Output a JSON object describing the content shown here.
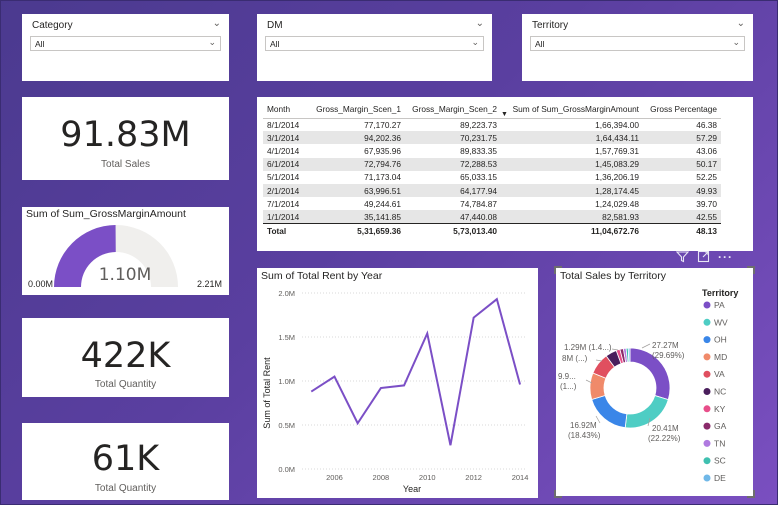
{
  "slicers": [
    {
      "title": "Category",
      "value": "All"
    },
    {
      "title": "DM",
      "value": "All"
    },
    {
      "title": "Territory",
      "value": "All"
    }
  ],
  "kpis": {
    "total_sales": {
      "value": "91.83M",
      "label": "Total Sales"
    },
    "total_quantity": {
      "value": "422K",
      "label": "Total Quantity"
    },
    "total_quantity_2": {
      "value": "61K",
      "label": "Total Quantity"
    }
  },
  "gauge": {
    "title": "Sum of Sum_GrossMarginAmount",
    "value_label": "1.10M",
    "min_label": "0.00M",
    "max_label": "2.21M",
    "value": 1.1,
    "min": 0,
    "max": 2.21,
    "fill_color": "#7b4fc6",
    "track_color": "#f0efed"
  },
  "table": {
    "columns": [
      "Month",
      "Gross_Margin_Scen_1",
      "Gross_Margin_Scen_2",
      "Sum of Sum_GrossMarginAmount",
      "Gross Percentage"
    ],
    "rows": [
      [
        "8/1/2014",
        "77,170.27",
        "89,223.73",
        "1,66,394.00",
        "46.38"
      ],
      [
        "3/1/2014",
        "94,202.36",
        "70,231.75",
        "1,64,434.11",
        "57.29"
      ],
      [
        "4/1/2014",
        "67,935.96",
        "89,833.35",
        "1,57,769.31",
        "43.06"
      ],
      [
        "6/1/2014",
        "72,794.76",
        "72,288.53",
        "1,45,083.29",
        "50.17"
      ],
      [
        "5/1/2014",
        "71,173.04",
        "65,033.15",
        "1,36,206.19",
        "52.25"
      ],
      [
        "2/1/2014",
        "63,996.51",
        "64,177.94",
        "1,28,174.45",
        "49.93"
      ],
      [
        "7/1/2014",
        "49,244.61",
        "74,784.87",
        "1,24,029.48",
        "39.70"
      ],
      [
        "1/1/2014",
        "35,141.85",
        "47,440.08",
        "82,581.93",
        "42.55"
      ]
    ],
    "total": [
      "Total",
      "5,31,659.36",
      "5,73,013.40",
      "11,04,672.76",
      "48.13"
    ]
  },
  "chart_data": [
    {
      "type": "line",
      "title": "Sum of Total Rent by Year",
      "xlabel": "Year",
      "ylabel": "Sum of Total Rent",
      "x": [
        2005,
        2006,
        2007,
        2008,
        2009,
        2010,
        2011,
        2012,
        2013,
        2014
      ],
      "y": [
        0.88,
        1.05,
        0.52,
        0.92,
        0.95,
        1.54,
        0.27,
        1.72,
        1.93,
        0.96
      ],
      "xticks": [
        "2006",
        "2008",
        "2010",
        "2012",
        "2014"
      ],
      "yticks": [
        "0.0M",
        "0.5M",
        "1.0M",
        "1.5M",
        "2.0M"
      ],
      "ylim": [
        0,
        2.0
      ],
      "xlim": [
        2004.6,
        2014.3
      ],
      "color": "#7b4fc6",
      "grid": true
    },
    {
      "type": "pie",
      "title": "Total Sales by Territory",
      "legend_title": "Territory",
      "legend_position": "right",
      "categories": [
        "PA",
        "WV",
        "OH",
        "MD",
        "VA",
        "NC",
        "KY",
        "GA",
        "TN",
        "SC",
        "DE"
      ],
      "values": [
        27.27,
        20.41,
        16.92,
        9.9,
        8.0,
        4.2,
        1.4,
        1.29,
        1.0,
        0.8,
        0.64
      ],
      "colors": [
        "#7b4fc6",
        "#4ecdc4",
        "#3a86e8",
        "#f08a6a",
        "#e04f5f",
        "#4a1e5c",
        "#e84e8a",
        "#8a2a6a",
        "#b07ae0",
        "#3fc0b0",
        "#70b8e8"
      ],
      "labels": [
        {
          "value": "27.27M",
          "pct": "(29.69%)"
        },
        {
          "value": "20.41M",
          "pct": "(22.22%)"
        },
        {
          "value": "16.92M",
          "pct": "(18.43%)"
        },
        {
          "value": "9.9...",
          "pct": "(1...)"
        },
        {
          "value": "8M (...)",
          "pct": ""
        },
        {
          "value": "1.29M (1.4...)",
          "pct": ""
        }
      ]
    }
  ],
  "icons": {
    "filter": "filter-icon",
    "focus": "focus-mode-icon",
    "more": "more-options-icon"
  }
}
